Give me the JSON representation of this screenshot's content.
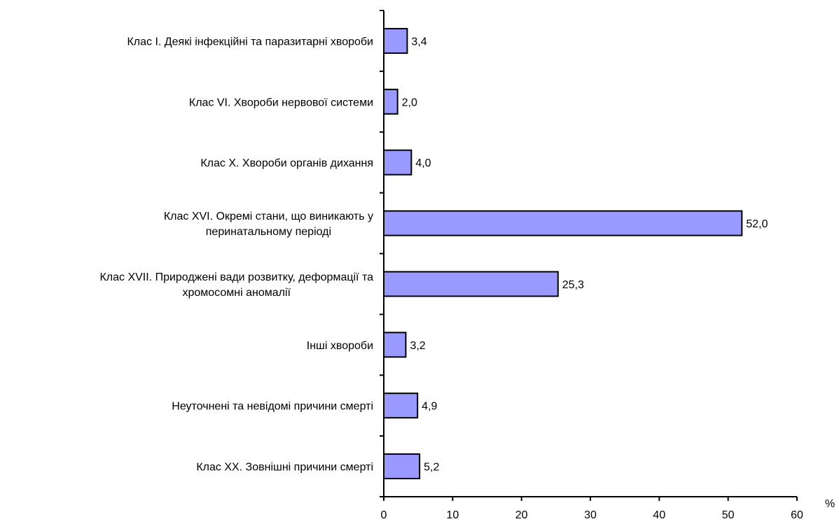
{
  "chart_data": {
    "type": "bar",
    "orientation": "horizontal",
    "categories": [
      [
        "Клас І. Деякі інфекційні та паразитарні хвороби"
      ],
      [
        "Клас VI. Хвороби нервової системи"
      ],
      [
        "Клас Х. Хвороби органів дихання"
      ],
      [
        "Клас XVI. Окремі стани, що виникають у",
        "перинатальному періоді"
      ],
      [
        "Клас XVII. Природжені вади розвитку, деформації та",
        "хромосомні аномалії"
      ],
      [
        "Інші хвороби"
      ],
      [
        "Неуточнені та невідомі причини смерті"
      ],
      [
        "Клас ХХ. Зовнішні причини смерті"
      ]
    ],
    "values": [
      3.4,
      2.0,
      4.0,
      52.0,
      25.3,
      3.2,
      4.9,
      5.2
    ],
    "value_labels": [
      "3,4",
      "2,0",
      "4,0",
      "52,0",
      "25,3",
      "3,2",
      "4,9",
      "5,2"
    ],
    "xlim": [
      0,
      60
    ],
    "xticks": [
      0,
      10,
      20,
      30,
      40,
      50,
      60
    ],
    "x_unit": "%",
    "bar_color": "#9999ff",
    "grid": false,
    "legend": false
  }
}
